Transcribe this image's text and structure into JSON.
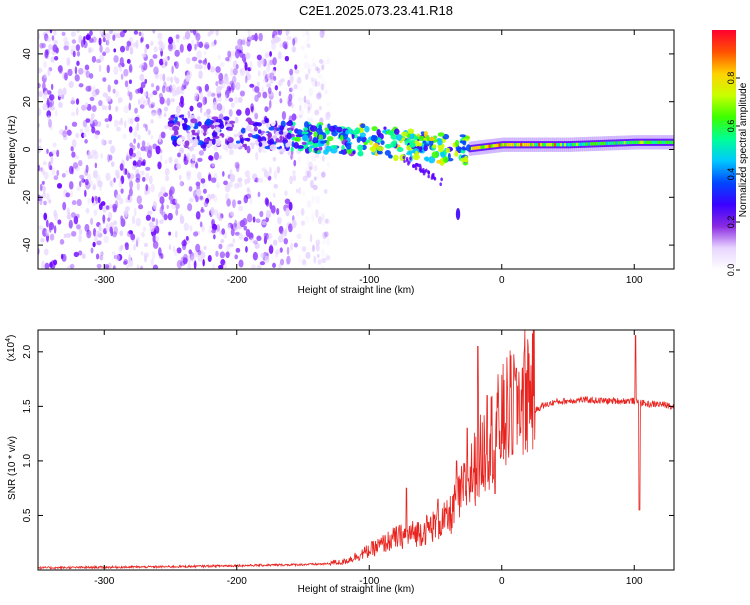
{
  "figure": {
    "title": "C2E1.2025.073.23.41.R18"
  },
  "chart_data": [
    {
      "type": "heatmap",
      "xlabel": "Height of straight line (km)",
      "ylabel": "Frequency (Hz)",
      "xlim": [
        -350,
        130
      ],
      "ylim": [
        -50,
        50
      ],
      "x_ticks": [
        -300,
        -200,
        -100,
        0,
        100
      ],
      "y_ticks": [
        -40,
        -20,
        0,
        20,
        40
      ],
      "colorbar": {
        "label": "Normalized spectral amplitude",
        "range": [
          0,
          1
        ],
        "ticks": [
          "0.0",
          "0.2",
          "0.4",
          "0.6",
          "0.8"
        ],
        "colors": [
          "#ffffff",
          "#e8d6ff",
          "#8a2be2",
          "#3a00ff",
          "#0047ff",
          "#00c8ff",
          "#00ff96",
          "#3cff00",
          "#c8ff00",
          "#ffd200",
          "#ff5000",
          "#ff0030"
        ]
      },
      "ridge": [
        {
          "x": -250,
          "f": 8
        },
        {
          "x": -200,
          "f": 7
        },
        {
          "x": -150,
          "f": 5
        },
        {
          "x": -100,
          "f": 4
        },
        {
          "x": -60,
          "f": 1
        },
        {
          "x": -30,
          "f": 0
        },
        {
          "x": 0,
          "f": 2
        },
        {
          "x": 50,
          "f": 2
        },
        {
          "x": 100,
          "f": 3
        },
        {
          "x": 130,
          "f": 3
        }
      ],
      "noise_region_x": [
        -350,
        -155
      ],
      "isolated_blob": {
        "x": -33,
        "f": -27
      }
    },
    {
      "type": "line",
      "xlabel": "Height of straight line (km)",
      "ylabel": "SNR (10 * v/v)",
      "exponent_label": "(x10",
      "exponent_power": "4",
      "xlim": [
        -350,
        130
      ],
      "ylim": [
        0,
        2.2
      ],
      "x_ticks": [
        -300,
        -200,
        -100,
        0,
        100
      ],
      "y_ticks": [
        0.5,
        1.0,
        1.5,
        2.0
      ],
      "series_color": "#e8231e",
      "series": [
        {
          "envelope_x": [
            -350,
            -250,
            -150,
            -120,
            -100,
            -80,
            -60,
            -40,
            -30,
            -20,
            -10,
            0,
            10,
            20,
            30,
            40,
            60,
            80,
            100,
            110,
            120,
            130
          ],
          "envelope_y": [
            0.02,
            0.03,
            0.05,
            0.06,
            0.15,
            0.25,
            0.3,
            0.4,
            0.6,
            0.8,
            1.0,
            1.15,
            1.3,
            1.42,
            1.5,
            1.54,
            1.56,
            1.55,
            1.55,
            1.52,
            1.52,
            1.5
          ],
          "spikes": [
            {
              "x": -72,
              "y": 0.75
            },
            {
              "x": -48,
              "y": 0.65
            },
            {
              "x": -34,
              "y": 1.0
            },
            {
              "x": -26,
              "y": 1.3
            },
            {
              "x": -18,
              "y": 2.05
            },
            {
              "x": -11,
              "y": 1.6
            },
            {
              "x": 11,
              "y": 1.85
            },
            {
              "x": 101,
              "y": 2.15
            }
          ],
          "dips": [
            {
              "x": 104,
              "y": 0.55
            },
            {
              "x": -5,
              "y": 0.7
            }
          ]
        }
      ]
    }
  ]
}
